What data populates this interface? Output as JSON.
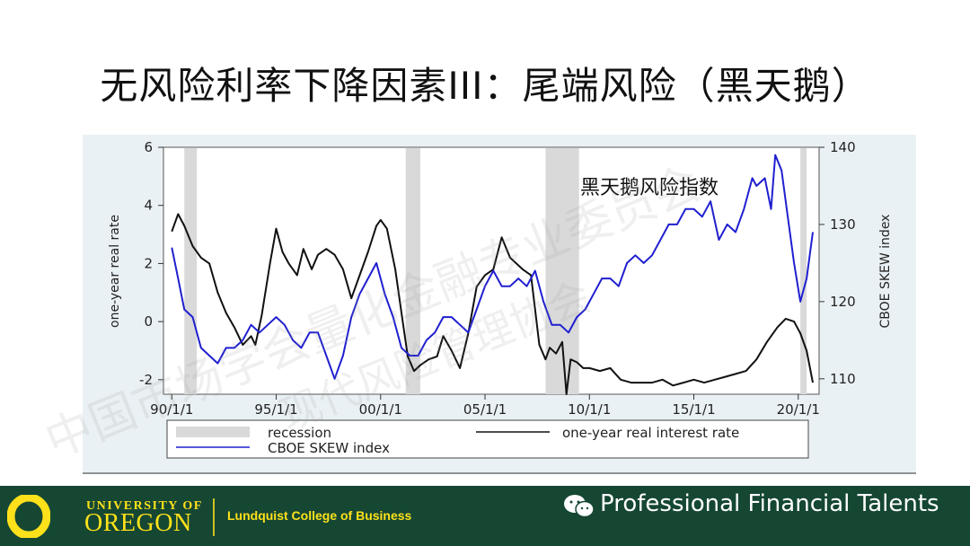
{
  "title": "无风险利率下降因素III：尾端风险（黑天鹅）",
  "chart_data": {
    "type": "line",
    "annotation": "黑天鹅风险指数",
    "ylabel_left": "one-year real rate",
    "ylabel_right": "CBOE SKEW index",
    "ylim_left": [
      -2.5,
      6
    ],
    "ylim_right": [
      108,
      140
    ],
    "x_ticks": [
      "90/1/1",
      "95/1/1",
      "00/1/1",
      "05/1/1",
      "10/1/1",
      "15/1/1",
      "20/1/1"
    ],
    "x_tick_years": [
      1990,
      1995,
      2000,
      2005,
      2010,
      2015,
      2020
    ],
    "xlim": [
      1989.6,
      2021.0
    ],
    "y_ticks_left": [
      "6",
      "4",
      "2",
      "0",
      "-2"
    ],
    "y_tick_values_left": [
      6,
      4,
      2,
      0,
      -2
    ],
    "y_ticks_right": [
      "140",
      "130",
      "120",
      "110"
    ],
    "y_tick_values_right": [
      140,
      130,
      120,
      110
    ],
    "recessions": [
      [
        1990.6,
        1991.2
      ],
      [
        2001.2,
        2001.9
      ],
      [
        2007.9,
        2009.5
      ],
      [
        2020.1,
        2020.4
      ]
    ],
    "legend": {
      "recession": "recession",
      "rate": "one-year real interest rate",
      "skew": "CBOE SKEW index"
    },
    "series": [
      {
        "name": "one-year real interest rate",
        "color": "#111111",
        "x": [
          1990.0,
          1990.3,
          1990.6,
          1991.0,
          1991.4,
          1991.8,
          1992.2,
          1992.6,
          1993.0,
          1993.4,
          1993.8,
          1994.0,
          1994.3,
          1994.7,
          1995.0,
          1995.3,
          1995.6,
          1996.0,
          1996.3,
          1996.7,
          1997.0,
          1997.4,
          1997.8,
          1998.2,
          1998.6,
          1999.0,
          1999.4,
          1999.8,
          2000.0,
          2000.3,
          2000.7,
          2001.0,
          2001.3,
          2001.6,
          2001.9,
          2002.3,
          2002.7,
          2003.0,
          2003.4,
          2003.8,
          2004.2,
          2004.6,
          2005.0,
          2005.4,
          2005.8,
          2006.2,
          2006.5,
          2006.8,
          2007.2,
          2007.6,
          2007.9,
          2008.1,
          2008.4,
          2008.7,
          2008.9,
          2009.1,
          2009.4,
          2009.7,
          2010.0,
          2010.5,
          2011.0,
          2011.5,
          2012.0,
          2012.5,
          2013.0,
          2013.5,
          2014.0,
          2014.5,
          2015.0,
          2015.5,
          2016.0,
          2016.5,
          2017.0,
          2017.5,
          2018.0,
          2018.5,
          2019.0,
          2019.4,
          2019.8,
          2020.1,
          2020.4,
          2020.7
        ],
        "y": [
          3.1,
          3.7,
          3.3,
          2.6,
          2.2,
          2.0,
          1.0,
          0.3,
          -0.2,
          -0.8,
          -0.5,
          -0.8,
          0.2,
          2.0,
          3.2,
          2.4,
          2.0,
          1.6,
          2.5,
          1.8,
          2.3,
          2.5,
          2.3,
          1.8,
          0.8,
          1.6,
          2.4,
          3.3,
          3.5,
          3.2,
          1.8,
          0.3,
          -1.2,
          -1.7,
          -1.5,
          -1.3,
          -1.2,
          -0.5,
          -1.0,
          -1.6,
          -0.4,
          1.2,
          1.6,
          1.8,
          2.9,
          2.2,
          2.0,
          1.8,
          1.6,
          -0.8,
          -1.3,
          -0.9,
          -1.1,
          -0.7,
          -2.5,
          -1.3,
          -1.4,
          -1.6,
          -1.6,
          -1.7,
          -1.6,
          -2.0,
          -2.1,
          -2.1,
          -2.1,
          -2.0,
          -2.2,
          -2.1,
          -2.0,
          -2.1,
          -2.0,
          -1.9,
          -1.8,
          -1.7,
          -1.3,
          -0.7,
          -0.2,
          0.1,
          0.0,
          -0.4,
          -1.0,
          -2.1
        ]
      },
      {
        "name": "CBOE SKEW index",
        "color": "#1f1fd0",
        "x": [
          1990.0,
          1990.3,
          1990.6,
          1991.0,
          1991.4,
          1991.8,
          1992.2,
          1992.6,
          1993.0,
          1993.4,
          1993.8,
          1994.2,
          1994.6,
          1995.0,
          1995.4,
          1995.8,
          1996.2,
          1996.6,
          1997.0,
          1997.4,
          1997.8,
          1998.2,
          1998.6,
          1999.0,
          1999.4,
          1999.8,
          2000.2,
          2000.6,
          2001.0,
          2001.4,
          2001.8,
          2002.2,
          2002.6,
          2003.0,
          2003.4,
          2003.8,
          2004.2,
          2004.6,
          2005.0,
          2005.4,
          2005.8,
          2006.2,
          2006.6,
          2007.0,
          2007.4,
          2007.8,
          2008.2,
          2008.6,
          2009.0,
          2009.4,
          2009.8,
          2010.2,
          2010.6,
          2011.0,
          2011.4,
          2011.8,
          2012.2,
          2012.6,
          2013.0,
          2013.4,
          2013.8,
          2014.2,
          2014.6,
          2015.0,
          2015.4,
          2015.8,
          2016.2,
          2016.6,
          2017.0,
          2017.4,
          2017.8,
          2018.0,
          2018.4,
          2018.7,
          2018.9,
          2019.2,
          2019.5,
          2019.8,
          2020.1,
          2020.4,
          2020.7
        ],
        "y": [
          127,
          123,
          119,
          118,
          114,
          113,
          112,
          114,
          114,
          115,
          117,
          116,
          117,
          118,
          117,
          115,
          114,
          116,
          116,
          113,
          110,
          113,
          118,
          121,
          123,
          125,
          121,
          118,
          114,
          113,
          113,
          115,
          116,
          118,
          118,
          117,
          116,
          119,
          122,
          124,
          122,
          122,
          123,
          122,
          124,
          120,
          117,
          117,
          116,
          118,
          119,
          121,
          123,
          123,
          122,
          125,
          126,
          125,
          126,
          128,
          130,
          130,
          132,
          132,
          131,
          133,
          128,
          130,
          129,
          132,
          136,
          135,
          136,
          132,
          139,
          137,
          131,
          125,
          120,
          123,
          129
        ]
      }
    ]
  },
  "footer": {
    "university_of": "UNIVERSITY OF",
    "oregon": "OREGON",
    "college": "Lundquist College of Business",
    "brand_text": "Professional Financial Talents"
  },
  "watermark": {
    "line1": "中国市场学会量化金融专业委员会",
    "line2": "现代风险管理协会"
  },
  "colors": {
    "footer_bg": "#154733",
    "footer_accent": "#FEE11A",
    "chart_bg": "#eaf1f4",
    "rate_line": "#111111",
    "skew_line": "#1f1fd0",
    "recession": "#d9d9d9"
  }
}
